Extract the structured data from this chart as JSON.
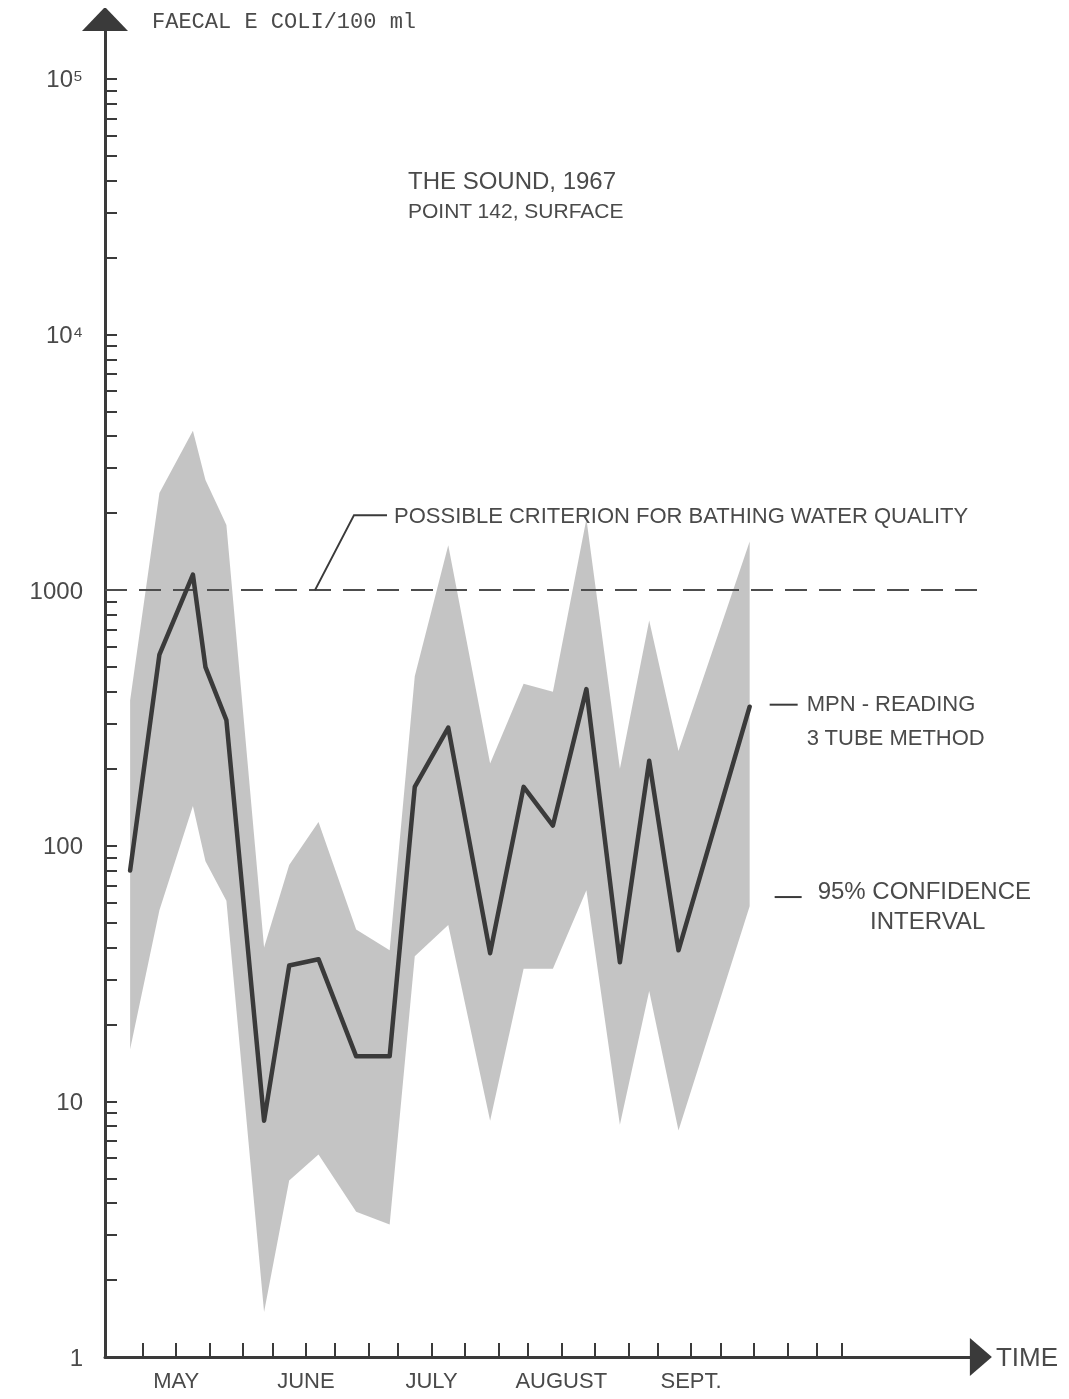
{
  "chart_data": {
    "type": "line",
    "title": "THE SOUND, 1967",
    "subtitle": "POINT 142, SURFACE",
    "xlabel": "TIME",
    "ylabel": "FAECAL E COLI/100 ml",
    "log": true,
    "x": [
      "1967-05-05",
      "1967-05-12",
      "1967-05-20",
      "1967-05-23",
      "1967-05-28",
      "1967-06-06",
      "1967-06-12",
      "1967-06-19",
      "1967-06-28",
      "1967-07-06",
      "1967-07-12",
      "1967-07-20",
      "1967-07-30",
      "1967-08-07",
      "1967-08-14",
      "1967-08-22",
      "1967-08-30",
      "1967-09-06",
      "1967-09-13",
      "1967-09-30"
    ],
    "series": [
      {
        "name": "MPN - READING 3 TUBE METHOD",
        "color": "#3a3a3a",
        "values": [
          80,
          560,
          1150,
          500,
          310,
          8.4,
          34,
          36,
          15,
          15,
          170,
          290,
          38,
          170,
          120,
          410,
          35,
          215,
          39,
          350
        ],
        "upper": [
          370,
          2400,
          4200,
          2700,
          1800,
          40,
          84,
          124,
          47,
          39,
          460,
          1500,
          210,
          430,
          400,
          1900,
          200,
          760,
          235,
          1550
        ],
        "lower": [
          16,
          56,
          143,
          87,
          61,
          1.5,
          4.9,
          6.2,
          3.7,
          3.3,
          37,
          49,
          8.4,
          33,
          33,
          67,
          8.1,
          27,
          7.7,
          58
        ]
      }
    ],
    "xlim": [
      "1967-04-29",
      "1967-11-24"
    ],
    "xticks": [
      {
        "value": "1967-05-08",
        "label": null
      },
      {
        "value": "1967-05-16",
        "label": "MAY"
      },
      {
        "value": "1967-05-24",
        "label": null
      },
      {
        "value": "1967-06-01",
        "label": null
      },
      {
        "value": "1967-06-08",
        "label": null
      },
      {
        "value": "1967-06-16",
        "label": "JUNE"
      },
      {
        "value": "1967-06-23",
        "label": null
      },
      {
        "value": "1967-07-01",
        "label": null
      },
      {
        "value": "1967-07-08",
        "label": null
      },
      {
        "value": "1967-07-16",
        "label": "JULY"
      },
      {
        "value": "1967-07-24",
        "label": null
      },
      {
        "value": "1967-08-01",
        "label": null
      },
      {
        "value": "1967-08-08",
        "label": null
      },
      {
        "value": "1967-08-16",
        "label": "AUGUST"
      },
      {
        "value": "1967-08-24",
        "label": null
      },
      {
        "value": "1967-09-01",
        "label": null
      },
      {
        "value": "1967-09-08",
        "label": null
      },
      {
        "value": "1967-09-16",
        "label": "SEPT."
      },
      {
        "value": "1967-09-23",
        "label": null
      },
      {
        "value": "1967-10-01",
        "label": null
      },
      {
        "value": "1967-10-09",
        "label": null
      },
      {
        "value": "1967-10-16",
        "label": null
      },
      {
        "value": "1967-10-22",
        "label": null
      }
    ],
    "ylim": [
      1,
      170000
    ],
    "yticks": [
      1,
      {
        "value": 2,
        "label": null
      },
      {
        "value": 3,
        "label": null
      },
      {
        "value": 4,
        "label": null
      },
      {
        "value": 5,
        "label": null
      },
      {
        "value": 6,
        "label": null
      },
      {
        "value": 7,
        "label": null
      },
      {
        "value": 8,
        "label": null
      },
      {
        "value": 9,
        "label": null
      },
      10,
      {
        "value": 20,
        "label": null
      },
      {
        "value": 30,
        "label": null
      },
      {
        "value": 40,
        "label": null
      },
      {
        "value": 50,
        "label": null
      },
      {
        "value": 60,
        "label": null
      },
      {
        "value": 70,
        "label": null
      },
      {
        "value": 80,
        "label": null
      },
      {
        "value": 90,
        "label": null
      },
      100,
      {
        "value": 200,
        "label": null
      },
      {
        "value": 300,
        "label": null
      },
      {
        "value": 400,
        "label": null
      },
      {
        "value": 500,
        "label": null
      },
      {
        "value": 600,
        "label": null
      },
      {
        "value": 700,
        "label": null
      },
      {
        "value": 800,
        "label": null
      },
      {
        "value": 900,
        "label": null
      },
      1000,
      {
        "value": 2000,
        "label": null
      },
      {
        "value": 3000,
        "label": null
      },
      {
        "value": 4000,
        "label": null
      },
      {
        "value": 5000,
        "label": null
      },
      {
        "value": 6000,
        "label": null
      },
      {
        "value": 7000,
        "label": null
      },
      {
        "value": 8000,
        "label": null
      },
      {
        "value": 9000,
        "label": null
      },
      {
        "value": 10000,
        "label": "10⁴"
      },
      {
        "value": 20000,
        "label": null
      },
      {
        "value": 30000,
        "label": null
      },
      {
        "value": 40000,
        "label": null
      },
      {
        "value": 50000,
        "label": null
      },
      {
        "value": 60000,
        "label": null
      },
      {
        "value": 70000,
        "label": null
      },
      {
        "value": 80000,
        "label": null
      },
      {
        "value": 90000,
        "label": null
      },
      {
        "value": 100000,
        "label": "10⁵"
      }
    ],
    "ref_lines": [
      {
        "axis": "y",
        "value": 1000,
        "label": "POSSIBLE CRITERION FOR BATHING WATER QUALITY",
        "line_style": "dashed",
        "color": "#4d4d4d"
      }
    ],
    "annotations": [
      {
        "text": "95% CONFIDENCE INTERVAL",
        "x": "1967-09-30",
        "y": 63
      }
    ]
  }
}
